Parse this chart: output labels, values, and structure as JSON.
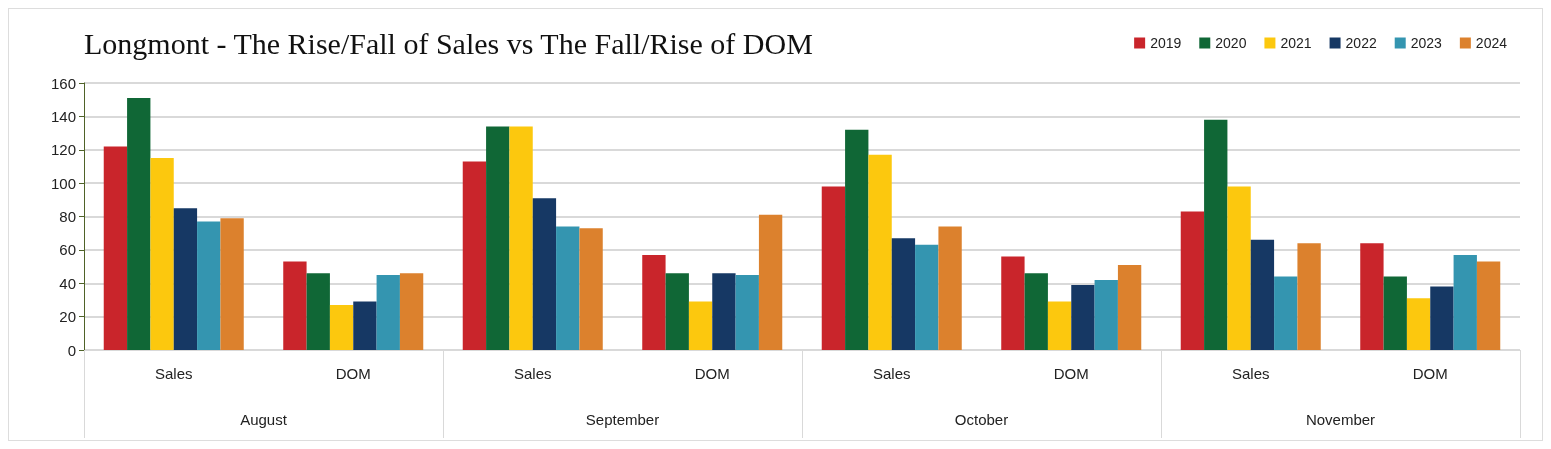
{
  "chart_data": {
    "type": "bar",
    "title": "Longmont - The Rise/Fall of Sales vs The Fall/Rise of DOM",
    "categories": [
      "Sales",
      "DOM",
      "Sales",
      "DOM",
      "Sales",
      "DOM",
      "Sales",
      "DOM"
    ],
    "annotations": [
      "August",
      "September",
      "October",
      "November"
    ],
    "series": [
      {
        "name": "2019",
        "color": "#c9252b",
        "values": [
          122,
          53,
          113,
          57,
          98,
          56,
          83,
          64
        ]
      },
      {
        "name": "2020",
        "color": "#106736",
        "values": [
          151,
          46,
          134,
          46,
          132,
          46,
          138,
          44
        ]
      },
      {
        "name": "2021",
        "color": "#fcc80e",
        "values": [
          115,
          27,
          134,
          29,
          117,
          29,
          98,
          31
        ]
      },
      {
        "name": "2022",
        "color": "#163864",
        "values": [
          85,
          29,
          91,
          46,
          67,
          39,
          66,
          38
        ]
      },
      {
        "name": "2023",
        "color": "#3495b0",
        "values": [
          77,
          45,
          74,
          45,
          63,
          42,
          44,
          57
        ]
      },
      {
        "name": "2024",
        "color": "#dc812d",
        "values": [
          79,
          46,
          73,
          81,
          74,
          51,
          64,
          53
        ]
      }
    ],
    "ylim": [
      0,
      160
    ],
    "yticks": [
      0,
      20,
      40,
      60,
      80,
      100,
      120,
      140,
      160
    ],
    "grid": "y",
    "legend": "top right"
  }
}
